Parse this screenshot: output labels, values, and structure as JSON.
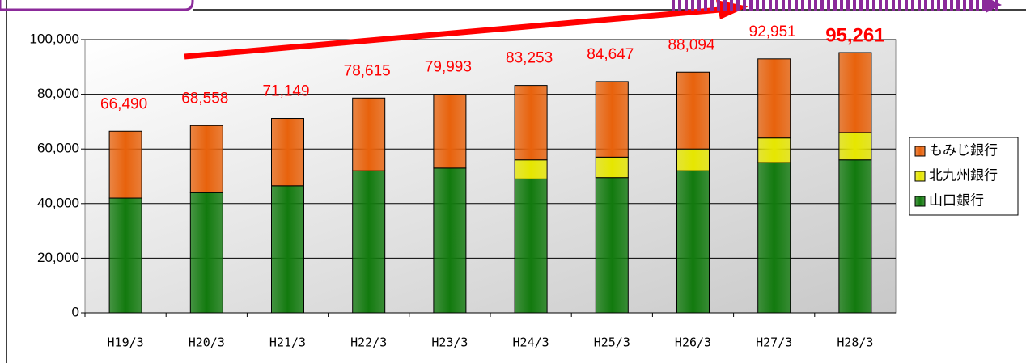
{
  "chart_data": {
    "type": "stacked-bar",
    "categories": [
      "H19/3",
      "H20/3",
      "H21/3",
      "H22/3",
      "H23/3",
      "H24/3",
      "H25/3",
      "H26/3",
      "H27/3",
      "H28/3"
    ],
    "series": [
      {
        "name": "山口銀行",
        "color": "#127a0e",
        "values": [
          42000,
          44000,
          46500,
          52000,
          53000,
          49000,
          49500,
          52000,
          55000,
          56000
        ]
      },
      {
        "name": "北九州銀行",
        "color": "#e6e600",
        "values": [
          0,
          0,
          0,
          0,
          0,
          7000,
          7500,
          8000,
          9000,
          10000
        ]
      },
      {
        "name": "もみじ銀行",
        "color": "#e8620c",
        "values": [
          24490,
          24558,
          24649,
          26615,
          26993,
          27253,
          27647,
          28094,
          28951,
          29261
        ]
      }
    ],
    "totals": [
      66490,
      68558,
      71149,
      78615,
      79993,
      83253,
      84647,
      88094,
      92951,
      95261
    ],
    "total_labels": [
      "66,490",
      "68,558",
      "71,149",
      "78,615",
      "79,993",
      "83,253",
      "84,647",
      "88,094",
      "92,951",
      "95,261"
    ],
    "ylim": [
      0,
      100000
    ],
    "yticks": [
      0,
      {
        "value": 20000,
        "label": "20,000"
      },
      {
        "value": 40000,
        "label": "40,000"
      },
      {
        "value": 60000,
        "label": "60,000"
      },
      {
        "value": 80000,
        "label": "80,000"
      },
      {
        "value": 100000,
        "label": "100,000"
      }
    ],
    "grid": true
  }
}
